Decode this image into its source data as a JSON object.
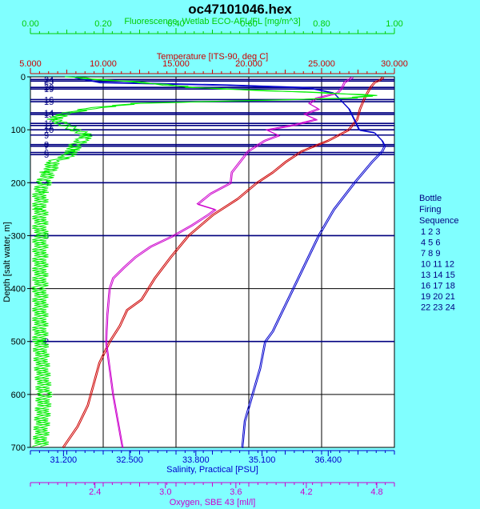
{
  "chart_data": {
    "type": "line",
    "title": "oc47101046.hex",
    "y_axis": {
      "label": "Depth [salt water, m]",
      "range": [
        0,
        700
      ],
      "ticks": [
        "0",
        "100",
        "200",
        "300",
        "400",
        "500",
        "600",
        "700"
      ],
      "inverted": true
    },
    "x_axes": [
      {
        "id": "fluor",
        "label": "Fluorescence, Wetlab ECO-AFL/FL [mg/m^3]",
        "range": [
          0,
          1
        ],
        "ticks": [
          "0.00",
          "0.20",
          "0.40",
          "0.60",
          "0.80",
          "1.00"
        ],
        "color": "#00cc00",
        "position": "top"
      },
      {
        "id": "temp",
        "label": "Temperature [ITS-90, deg C]",
        "range": [
          5,
          30
        ],
        "ticks": [
          "5.000",
          "10.000",
          "15.000",
          "20.000",
          "25.000",
          "30.000"
        ],
        "color": "#cc0000",
        "position": "top"
      },
      {
        "id": "sal",
        "label": "Salinity, Practical [PSU]",
        "range": [
          30.55,
          37.7
        ],
        "ticks": [
          "31.200",
          "32.500",
          "33.800",
          "35.100",
          "36.400"
        ],
        "color": "#0000cc",
        "position": "bottom"
      },
      {
        "id": "oxy",
        "label": "Oxygen, SBE 43 [ml/l]",
        "range": [
          1.85,
          4.95
        ],
        "ticks": [
          "2.4",
          "3.0",
          "3.6",
          "4.2",
          "4.8"
        ],
        "color": "#cc00cc",
        "position": "bottom"
      }
    ],
    "series": [
      {
        "axis": "temp",
        "color": "#cc0000",
        "depth": [
          0,
          5,
          10,
          20,
          30,
          40,
          60,
          80,
          100,
          120,
          140,
          160,
          180,
          200,
          230,
          260,
          300,
          340,
          380,
          420,
          440,
          470,
          500,
          540,
          580,
          620,
          660,
          700
        ],
        "values": [
          29.2,
          29.0,
          28.6,
          28.3,
          28.1,
          27.9,
          27.6,
          27.4,
          26.8,
          25.4,
          23.6,
          22.5,
          21.6,
          20.5,
          19.2,
          17.5,
          15.8,
          14.6,
          13.5,
          12.6,
          11.6,
          11.1,
          10.4,
          9.7,
          9.3,
          8.9,
          8.2,
          7.2
        ]
      },
      {
        "axis": "sal",
        "color": "#0000cc",
        "depth": [
          0,
          10,
          15,
          20,
          30,
          60,
          80,
          100,
          105,
          110,
          120,
          130,
          140,
          160,
          200,
          250,
          300,
          350,
          400,
          450,
          480,
          500,
          550,
          600,
          650,
          700
        ],
        "values": [
          31.4,
          31.9,
          34.4,
          36.0,
          36.5,
          36.8,
          36.9,
          37.0,
          37.3,
          37.35,
          37.45,
          37.5,
          37.45,
          37.25,
          36.9,
          36.5,
          36.2,
          35.95,
          35.7,
          35.45,
          35.3,
          35.15,
          35.05,
          34.9,
          34.75,
          34.7
        ]
      },
      {
        "axis": "oxy",
        "color": "#cc00cc",
        "depth": [
          0,
          10,
          20,
          30,
          40,
          50,
          60,
          70,
          80,
          90,
          100,
          110,
          120,
          140,
          160,
          180,
          200,
          220,
          240,
          250,
          260,
          280,
          300,
          320,
          340,
          360,
          380,
          400,
          450,
          500,
          550,
          600,
          650,
          700
        ],
        "values": [
          4.59,
          4.52,
          4.5,
          4.46,
          4.28,
          4.22,
          4.3,
          4.18,
          4.28,
          4.1,
          3.86,
          3.96,
          3.84,
          3.7,
          3.63,
          3.56,
          3.55,
          3.38,
          3.27,
          3.42,
          3.36,
          3.22,
          3.06,
          2.87,
          2.74,
          2.64,
          2.55,
          2.52,
          2.5,
          2.49,
          2.52,
          2.55,
          2.59,
          2.63
        ]
      },
      {
        "axis": "fluor",
        "color": "#00ee00",
        "depth": [
          0,
          5,
          10,
          20,
          25,
          30,
          35,
          40,
          45,
          50,
          60,
          70,
          80,
          90,
          100,
          110,
          120,
          130,
          140,
          150,
          160,
          180,
          200,
          220,
          250,
          300,
          400,
          500,
          600,
          700
        ],
        "values": [
          0.12,
          0.18,
          0.3,
          0.45,
          0.6,
          0.8,
          0.95,
          0.88,
          0.6,
          0.3,
          0.16,
          0.1,
          0.07,
          0.09,
          0.13,
          0.16,
          0.14,
          0.13,
          0.12,
          0.1,
          0.07,
          0.05,
          0.04,
          0.03,
          0.03,
          0.03,
          0.03,
          0.03,
          0.04,
          0.03
        ]
      }
    ],
    "bottle_firings": [
      {
        "label": "24",
        "depth": 5
      },
      {
        "label": "23",
        "depth": 8
      },
      {
        "label": "20",
        "depth": 20
      },
      {
        "label": "19",
        "depth": 23
      },
      {
        "label": "16",
        "depth": 43
      },
      {
        "label": "15",
        "depth": 47
      },
      {
        "label": "14",
        "depth": 68
      },
      {
        "label": "13",
        "depth": 71
      },
      {
        "label": "12",
        "depth": 88
      },
      {
        "label": "11",
        "depth": 92
      },
      {
        "label": "10",
        "depth": 100
      },
      {
        "label": "9",
        "depth": 110
      },
      {
        "label": "8",
        "depth": 128
      },
      {
        "label": "7",
        "depth": 131
      },
      {
        "label": "6",
        "depth": 143
      },
      {
        "label": "5",
        "depth": 147
      },
      {
        "label": "4",
        "depth": 200
      },
      {
        "label": "3",
        "depth": 300
      },
      {
        "label": "2",
        "depth": 500
      }
    ],
    "legend": {
      "title_lines": [
        "Bottle",
        "Firing",
        "Sequence"
      ],
      "rows": [
        "1  2  3",
        "4  5  6",
        "7  8  9",
        "10 11 12",
        "13 14 15",
        "16 17 18",
        "19 20 21",
        "22 23 24"
      ],
      "placement": "right"
    },
    "grid": true
  }
}
